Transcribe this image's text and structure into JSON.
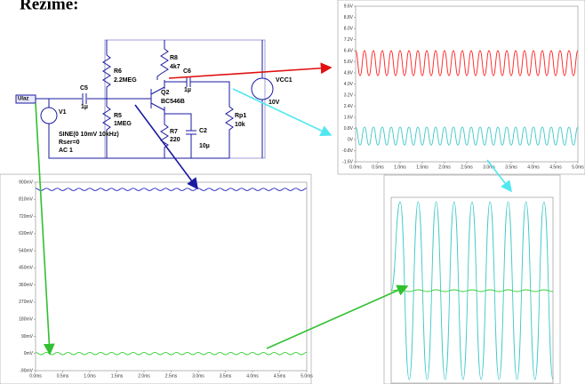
{
  "title": "Režime:",
  "schematic": {
    "input": "Ulaz",
    "c5": "C5",
    "c5_value": "1µ",
    "v1": "V1",
    "v1_spec": "SINE(0 10mV 10kHz)",
    "v1_rser": "Rser=0",
    "v1_ac": "AC 1",
    "r6": "R6",
    "r6_value": "2.2MEG",
    "r5": "R5",
    "r5_value": "1MEG",
    "r8": "R8",
    "r8_value": "4k7",
    "c6": "C6",
    "c6_value": "1µ",
    "q2": "Q2",
    "q2_value": "BC546B",
    "r7": "R7",
    "r7_value": "220",
    "c2": "C2",
    "c2_value": "10µ",
    "rp1": "Rp1",
    "rp1_value": "10k",
    "vcc1": "VCC1",
    "vcc1_value": "10V"
  },
  "plots": [
    {
      "type": "line",
      "x": [
        0,
        0.1,
        0.2,
        0.3,
        0.4,
        0.5,
        0.6,
        0.7,
        0.8,
        0.9,
        1,
        1.1,
        1.2,
        1.3,
        1.4,
        1.5,
        1.6,
        1.7,
        1.8,
        1.9,
        2,
        2.1,
        2.2,
        2.3,
        2.4,
        2.5,
        2.6,
        2.7,
        2.8,
        2.9,
        3,
        3.1,
        3.2,
        3.3,
        3.4,
        3.5,
        3.6,
        3.7,
        3.8,
        3.9,
        4,
        4.1,
        4.2,
        4.3,
        4.4,
        4.5,
        4.6,
        4.7,
        4.8,
        4.9,
        5
      ],
      "xlim": [
        0,
        5
      ],
      "ylim": [
        -1.6,
        9.6
      ],
      "xticks": [
        {
          "value": 0,
          "label": "0.0ms"
        },
        {
          "value": 0.5,
          "label": "0.5ms"
        },
        {
          "value": 1,
          "label": "1.0ms"
        },
        {
          "value": 1.5,
          "label": "1.5ms"
        },
        {
          "value": 2,
          "label": "2.0ms"
        },
        {
          "value": 2.5,
          "label": "2.5ms"
        },
        {
          "value": 3,
          "label": "3.0ms"
        },
        {
          "value": 3.5,
          "label": "3.5ms"
        },
        {
          "value": 4,
          "label": "4.0ms"
        },
        {
          "value": 4.5,
          "label": "4.5ms"
        },
        {
          "value": 5,
          "label": "5.0ms"
        }
      ],
      "yticks": [
        {
          "value": 9.6,
          "label": "9.6V"
        },
        {
          "value": 8.8,
          "label": "8.8V"
        },
        {
          "value": 8,
          "label": "8.0V"
        },
        {
          "value": 7.2,
          "label": "7.2V"
        },
        {
          "value": 6.4,
          "label": "6.4V"
        },
        {
          "value": 5.6,
          "label": "5.6V"
        },
        {
          "value": 4.8,
          "label": "4.8V"
        },
        {
          "value": 4,
          "label": "4.0V"
        },
        {
          "value": 3.2,
          "label": "3.2V"
        },
        {
          "value": 2.4,
          "label": "2.4V"
        },
        {
          "value": 1.6,
          "label": "1.6V"
        },
        {
          "value": 0.8,
          "label": "0.8V"
        },
        {
          "value": 0,
          "label": "0V"
        },
        {
          "value": -0.8,
          "label": "-0.8V"
        },
        {
          "value": -1.6,
          "label": "-1.6V"
        }
      ],
      "series": [
        {
          "color": "#ff2020",
          "values": [
            6.4,
            4.6,
            6.4,
            4.6,
            6.4,
            4.6,
            6.4,
            4.6,
            6.4,
            4.6,
            6.4,
            4.6,
            6.4,
            4.6,
            6.4,
            4.6,
            6.4,
            4.6,
            6.4,
            4.6,
            6.4,
            4.6,
            6.4,
            4.6,
            6.4,
            4.6,
            6.4,
            4.6,
            6.4,
            4.6,
            6.4,
            4.6,
            6.4,
            4.6,
            6.4,
            4.6,
            6.4,
            4.6,
            6.4,
            4.6,
            6.4,
            4.6,
            6.4,
            4.6,
            6.4,
            4.6,
            6.4,
            4.6,
            6.4,
            4.6,
            6.4
          ]
        },
        {
          "color": "#3fc8c8",
          "values": [
            0.9,
            -0.4,
            0.9,
            -0.4,
            0.9,
            -0.4,
            0.9,
            -0.4,
            0.9,
            -0.4,
            0.9,
            -0.4,
            0.9,
            -0.4,
            0.9,
            -0.4,
            0.9,
            -0.4,
            0.9,
            -0.4,
            0.9,
            -0.4,
            0.9,
            -0.4,
            0.9,
            -0.4,
            0.9,
            -0.4,
            0.9,
            -0.4,
            0.9,
            -0.4,
            0.9,
            -0.4,
            0.9,
            -0.4,
            0.9,
            -0.4,
            0.9,
            -0.4,
            0.9,
            -0.4,
            0.9,
            -0.4,
            0.9,
            -0.4,
            0.9,
            -0.4,
            0.9,
            -0.4,
            0.9
          ]
        }
      ]
    },
    {
      "type": "line",
      "x": [
        0,
        0.1,
        0.2,
        0.3,
        0.4,
        0.5,
        0.6,
        0.7,
        0.8,
        0.9,
        1,
        1.1,
        1.2,
        1.3,
        1.4,
        1.5,
        1.6,
        1.7,
        1.8,
        1.9,
        2,
        2.1,
        2.2,
        2.3,
        2.4,
        2.5,
        2.6,
        2.7,
        2.8,
        2.9,
        3,
        3.1,
        3.2,
        3.3,
        3.4,
        3.5,
        3.6,
        3.7,
        3.8,
        3.9,
        4,
        4.1,
        4.2,
        4.3,
        4.4,
        4.5,
        4.6,
        4.7,
        4.8,
        4.9,
        5
      ],
      "xlim": [
        0,
        5
      ],
      "ylim": [
        -90,
        900
      ],
      "xticks": [
        {
          "value": 0,
          "label": "0.0ms"
        },
        {
          "value": 0.5,
          "label": "0.5ms"
        },
        {
          "value": 1,
          "label": "1.0ms"
        },
        {
          "value": 1.5,
          "label": "1.5ms"
        },
        {
          "value": 2,
          "label": "2.0ms"
        },
        {
          "value": 2.5,
          "label": "2.5ms"
        },
        {
          "value": 3,
          "label": "3.0ms"
        },
        {
          "value": 3.5,
          "label": "3.5ms"
        },
        {
          "value": 4,
          "label": "4.0ms"
        },
        {
          "value": 4.5,
          "label": "4.5ms"
        },
        {
          "value": 5,
          "label": "5.0ms"
        }
      ],
      "yticks": [
        {
          "value": 900,
          "label": "900mV"
        },
        {
          "value": 810,
          "label": "810mV"
        },
        {
          "value": 720,
          "label": "720mV"
        },
        {
          "value": 630,
          "label": "630mV"
        },
        {
          "value": 540,
          "label": "540mV"
        },
        {
          "value": 450,
          "label": "450mV"
        },
        {
          "value": 360,
          "label": "360mV"
        },
        {
          "value": 270,
          "label": "270mV"
        },
        {
          "value": 180,
          "label": "180mV"
        },
        {
          "value": 90,
          "label": "90mV"
        },
        {
          "value": 0,
          "label": "0mV"
        },
        {
          "value": -90,
          "label": "-90mV"
        }
      ],
      "series": [
        {
          "color": "#2020c0",
          "values": [
            868,
            856,
            868,
            856,
            868,
            856,
            868,
            856,
            868,
            856,
            868,
            856,
            868,
            856,
            868,
            856,
            868,
            856,
            868,
            856,
            868,
            856,
            868,
            856,
            868,
            856,
            868,
            856,
            868,
            856,
            868,
            856,
            868,
            856,
            868,
            856,
            868,
            856,
            868,
            856,
            868,
            856,
            868,
            856,
            868,
            856,
            868,
            856,
            868,
            856,
            868
          ]
        },
        {
          "color": "#30d030",
          "values": [
            6,
            -6,
            6,
            -6,
            6,
            -6,
            6,
            -6,
            6,
            -6,
            6,
            -6,
            6,
            -6,
            6,
            -6,
            6,
            -6,
            6,
            -6,
            6,
            -6,
            6,
            -6,
            6,
            -6,
            6,
            -6,
            6,
            -6,
            6,
            -6,
            6,
            -6,
            6,
            -6,
            6,
            -6,
            6,
            -6,
            6,
            -6,
            6,
            -6,
            6,
            -6,
            6,
            -6,
            6,
            -6,
            6
          ]
        }
      ]
    },
    {
      "type": "line",
      "ylim": [
        -1.05,
        1.05
      ],
      "series": [
        {
          "color": "#3fc8c8",
          "values": [
            0,
            1,
            -1,
            1,
            -1,
            1,
            -1,
            1,
            -1,
            1,
            -1,
            1,
            -1,
            1,
            -1,
            1,
            -1,
            1,
            -1
          ]
        },
        {
          "color": "#30d030",
          "values": [
            0,
            0.01,
            -0.01,
            0.01,
            -0.01,
            0.01,
            -0.01,
            0.01,
            -0.01,
            0.01,
            -0.01,
            0.01,
            -0.01,
            0.01,
            -0.01,
            0.01,
            -0.01,
            0.01,
            -0.01
          ]
        }
      ]
    }
  ]
}
